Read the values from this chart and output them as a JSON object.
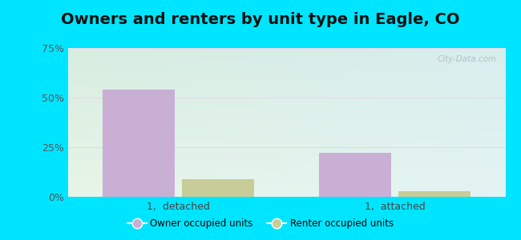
{
  "title": "Owners and renters by unit type in Eagle, CO",
  "categories": [
    "1,  detached",
    "1,  attached"
  ],
  "owner_values": [
    54,
    22
  ],
  "renter_values": [
    9,
    3
  ],
  "owner_color": "#c9afd4",
  "renter_color": "#c8cc99",
  "ylim": [
    0,
    75
  ],
  "yticks": [
    0,
    25,
    50,
    75
  ],
  "yticklabels": [
    "0%",
    "25%",
    "50%",
    "75%"
  ],
  "background_outer": "#00e5ff",
  "grad_top_left": "#d8ede0",
  "grad_top_right": "#d8eeee",
  "grad_bot_left": "#e8f5e8",
  "grad_bot_right": "#e4f4f4",
  "grid_color": "#e8d8e8",
  "bar_width": 0.28,
  "legend_owner": "Owner occupied units",
  "legend_renter": "Renter occupied units",
  "watermark": "City-Data.com",
  "title_fontsize": 14,
  "tick_fontsize": 9,
  "label_fontsize": 9
}
